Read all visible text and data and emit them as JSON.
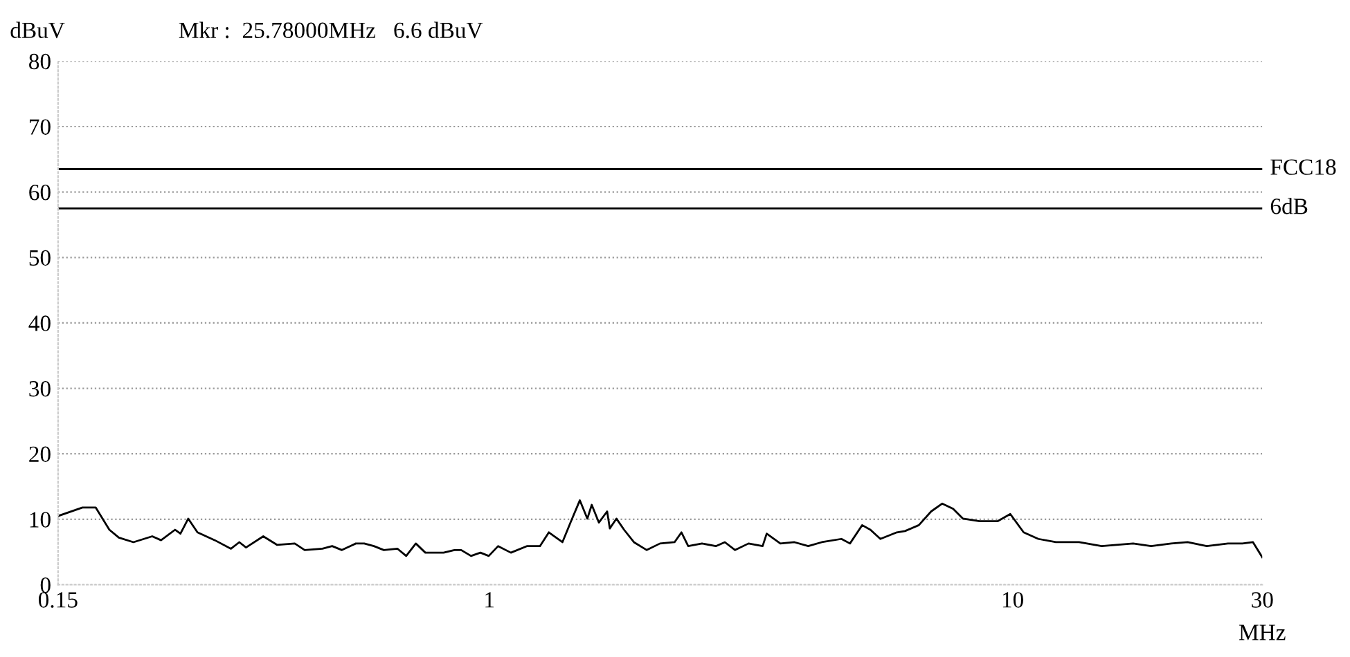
{
  "chart_data": {
    "type": "line",
    "ylabel": "dBuV",
    "xlabel": "MHz",
    "annotations": [
      "Mkr :  25.78000MHz   6.6 dBuV"
    ],
    "log": "x",
    "xlim": [
      0.15,
      30
    ],
    "xticks": [
      0.15,
      1,
      10,
      30
    ],
    "ylim": [
      0,
      80
    ],
    "yticks": [
      0,
      10,
      20,
      30,
      40,
      50,
      60,
      70,
      80
    ],
    "grid": "y",
    "marker": "none",
    "line_style": "solid",
    "ref_lines": [
      {
        "axis": "y",
        "value": 63.5,
        "label": "FCC18",
        "color": "#000000"
      },
      {
        "axis": "y",
        "value": 57.5,
        "label": "6dB",
        "color": "#000000"
      }
    ],
    "series": [
      {
        "color": "#000000",
        "x": [
          0.15,
          0.167,
          0.177,
          0.188,
          0.196,
          0.209,
          0.227,
          0.236,
          0.251,
          0.257,
          0.266,
          0.277,
          0.299,
          0.321,
          0.333,
          0.343,
          0.37,
          0.393,
          0.425,
          0.444,
          0.48,
          0.501,
          0.523,
          0.556,
          0.577,
          0.602,
          0.629,
          0.668,
          0.694,
          0.724,
          0.755,
          0.818,
          0.858,
          0.884,
          0.923,
          0.962,
          0.998,
          1.04,
          1.1,
          1.18,
          1.25,
          1.3,
          1.38,
          1.43,
          1.49,
          1.54,
          1.57,
          1.62,
          1.68,
          1.7,
          1.75,
          1.81,
          1.89,
          2.0,
          2.12,
          2.26,
          2.33,
          2.4,
          2.55,
          2.71,
          2.82,
          2.95,
          3.13,
          3.33,
          3.39,
          3.6,
          3.83,
          4.07,
          4.32,
          4.71,
          4.89,
          5.16,
          5.35,
          5.59,
          6.01,
          6.23,
          6.62,
          6.99,
          7.34,
          7.7,
          8.04,
          8.65,
          9.36,
          9.9,
          10.5,
          11.2,
          12.1,
          13.4,
          14.8,
          17.0,
          18.4,
          20.1,
          21.6,
          23.5,
          25.8,
          27.5,
          28.8,
          30
        ],
        "values": [
          10.5,
          11.8,
          11.8,
          8.4,
          7.2,
          6.5,
          7.4,
          6.8,
          8.4,
          7.8,
          10.1,
          8.0,
          6.8,
          5.5,
          6.5,
          5.7,
          7.4,
          6.1,
          6.3,
          5.3,
          5.5,
          5.9,
          5.3,
          6.3,
          6.3,
          5.9,
          5.3,
          5.5,
          4.4,
          6.3,
          4.9,
          4.9,
          5.3,
          5.3,
          4.4,
          4.9,
          4.4,
          5.9,
          4.9,
          5.9,
          5.9,
          8.0,
          6.5,
          9.5,
          12.9,
          10.1,
          12.2,
          9.5,
          11.2,
          8.6,
          10.1,
          8.4,
          6.5,
          5.3,
          6.3,
          6.5,
          8.0,
          5.9,
          6.3,
          5.9,
          6.5,
          5.3,
          6.3,
          5.9,
          7.8,
          6.3,
          6.5,
          5.9,
          6.5,
          7.0,
          6.3,
          9.1,
          8.4,
          7.0,
          8.0,
          8.2,
          9.1,
          11.2,
          12.4,
          11.6,
          10.1,
          9.7,
          9.7,
          10.8,
          8.0,
          7.0,
          6.5,
          6.5,
          5.9,
          6.3,
          5.9,
          6.3,
          6.5,
          5.9,
          6.3,
          6.3,
          6.5,
          4.2
        ]
      }
    ]
  }
}
